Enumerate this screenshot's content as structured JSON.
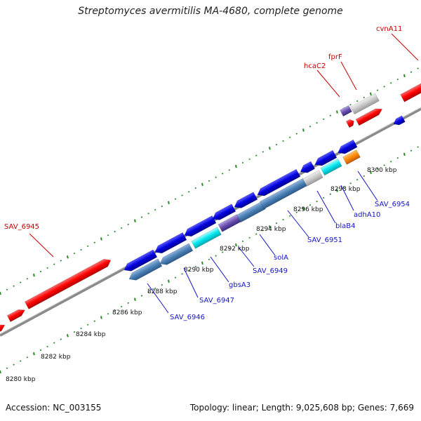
{
  "title": "Streptomyces avermitilis MA-4680, complete genome",
  "footer": {
    "accession": "Accession: NC_003155",
    "summary": "Topology: linear; Length: 9,025,608 bp; Genes: 7,669"
  },
  "colors": {
    "forward_gene": "#ff0000",
    "reverse_gene": "#0000dd",
    "rna_steel": "#4a7fb5",
    "cyan_gene": "#00e5ee",
    "grey_gene": "#c8c8c8",
    "orange_gene": "#ff8800",
    "purple_gene": "#6a4fb0",
    "backbone": "#888888",
    "tick": "#2a8a2a"
  },
  "scale_labels": [
    "8280 kbp",
    "8282 kbp",
    "8284 kbp",
    "8286 kbp",
    "8288 kbp",
    "8290 kbp",
    "8292 kbp",
    "8294 kbp",
    "8296 kbp",
    "8298 kbp",
    "8300 kbp"
  ],
  "gene_labels_red": [
    "SAV_6945",
    "hcaC2",
    "fprF",
    "cvnA11"
  ],
  "gene_labels_blue": [
    "SAV_6946",
    "SAV_6947",
    "gbsA3",
    "SAV_6949",
    "solA",
    "SAV_6951",
    "blaB4",
    "adhA10",
    "SAV_6954"
  ]
}
